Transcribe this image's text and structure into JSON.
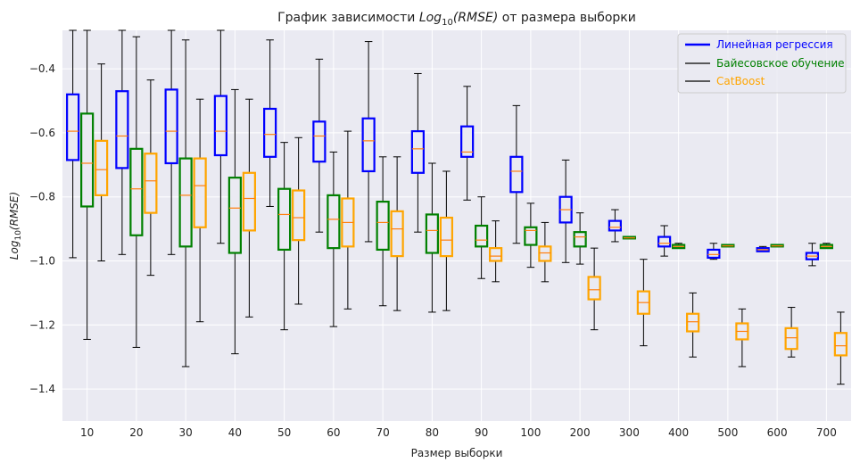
{
  "chart_data": {
    "type": "box",
    "title_prefix": "График зависимости ",
    "title_math_base": "Log",
    "title_math_sub": "10",
    "title_math_arg": "(RMSE)",
    "title_suffix": " от размера выборки",
    "xlabel": "Размер выборки",
    "ylabel_base": "Log",
    "ylabel_sub": "10",
    "ylabel_arg": "(RMSE)",
    "ylim": [
      -1.5,
      -0.28
    ],
    "yticks": [
      -0.4,
      -0.6,
      -0.8,
      -1.0,
      -1.2,
      -1.4
    ],
    "ytick_labels": [
      "−0.4",
      "−0.6",
      "−0.8",
      "−1.0",
      "−1.2",
      "−1.4"
    ],
    "categories": [
      "10",
      "20",
      "30",
      "40",
      "50",
      "60",
      "70",
      "80",
      "90",
      "100",
      "200",
      "300",
      "400",
      "500",
      "600",
      "700"
    ],
    "grid": true,
    "background": "#eaeaf2",
    "median_color": "#ff7f0e",
    "legend_position": "top-right",
    "series": [
      {
        "name": "Линейная регрессия",
        "color": "#0000ff",
        "legend_text_color": "#0000ff",
        "legend_line_color": "#0000ff",
        "boxes": [
          {
            "whislo": -0.99,
            "q1": -0.685,
            "med": -0.595,
            "q3": -0.48,
            "whishi": -0.28
          },
          {
            "whislo": -0.98,
            "q1": -0.71,
            "med": -0.61,
            "q3": -0.47,
            "whishi": -0.28
          },
          {
            "whislo": -0.98,
            "q1": -0.695,
            "med": -0.595,
            "q3": -0.465,
            "whishi": -0.28
          },
          {
            "whislo": -0.945,
            "q1": -0.67,
            "med": -0.595,
            "q3": -0.485,
            "whishi": -0.28
          },
          {
            "whislo": -0.83,
            "q1": -0.675,
            "med": -0.605,
            "q3": -0.525,
            "whishi": -0.31
          },
          {
            "whislo": -0.91,
            "q1": -0.69,
            "med": -0.61,
            "q3": -0.565,
            "whishi": -0.37
          },
          {
            "whislo": -0.94,
            "q1": -0.72,
            "med": -0.625,
            "q3": -0.555,
            "whishi": -0.315
          },
          {
            "whislo": -0.91,
            "q1": -0.725,
            "med": -0.65,
            "q3": -0.595,
            "whishi": -0.415
          },
          {
            "whislo": -0.81,
            "q1": -0.675,
            "med": -0.66,
            "q3": -0.58,
            "whishi": -0.455
          },
          {
            "whislo": -0.945,
            "q1": -0.785,
            "med": -0.72,
            "q3": -0.675,
            "whishi": -0.515
          },
          {
            "whislo": -1.005,
            "q1": -0.88,
            "med": -0.84,
            "q3": -0.8,
            "whishi": -0.685
          },
          {
            "whislo": -0.94,
            "q1": -0.905,
            "med": -0.895,
            "q3": -0.875,
            "whishi": -0.84
          },
          {
            "whislo": -0.985,
            "q1": -0.955,
            "med": -0.945,
            "q3": -0.925,
            "whishi": -0.89
          },
          {
            "whislo": -0.995,
            "q1": -0.99,
            "med": -0.98,
            "q3": -0.965,
            "whishi": -0.945
          },
          {
            "whislo": -0.97,
            "q1": -0.97,
            "med": -0.965,
            "q3": -0.96,
            "whishi": -0.955
          },
          {
            "whislo": -1.015,
            "q1": -0.995,
            "med": -0.985,
            "q3": -0.975,
            "whishi": -0.945
          }
        ]
      },
      {
        "name": "Байесовское обучение",
        "color": "#008000",
        "legend_text_color": "#008000",
        "legend_line_color": "#000000",
        "boxes": [
          {
            "whislo": -1.245,
            "q1": -0.83,
            "med": -0.695,
            "q3": -0.54,
            "whishi": -0.28
          },
          {
            "whislo": -1.27,
            "q1": -0.92,
            "med": -0.775,
            "q3": -0.65,
            "whishi": -0.3
          },
          {
            "whislo": -1.33,
            "q1": -0.955,
            "med": -0.795,
            "q3": -0.68,
            "whishi": -0.31
          },
          {
            "whislo": -1.29,
            "q1": -0.975,
            "med": -0.835,
            "q3": -0.74,
            "whishi": -0.465
          },
          {
            "whislo": -1.215,
            "q1": -0.965,
            "med": -0.855,
            "q3": -0.775,
            "whishi": -0.63
          },
          {
            "whislo": -1.205,
            "q1": -0.96,
            "med": -0.87,
            "q3": -0.795,
            "whishi": -0.66
          },
          {
            "whislo": -1.14,
            "q1": -0.965,
            "med": -0.88,
            "q3": -0.815,
            "whishi": -0.675
          },
          {
            "whislo": -1.16,
            "q1": -0.975,
            "med": -0.905,
            "q3": -0.855,
            "whishi": -0.695
          },
          {
            "whislo": -1.055,
            "q1": -0.955,
            "med": -0.935,
            "q3": -0.89,
            "whishi": -0.8
          },
          {
            "whislo": -1.02,
            "q1": -0.95,
            "med": -0.905,
            "q3": -0.895,
            "whishi": -0.82
          },
          {
            "whislo": -1.01,
            "q1": -0.955,
            "med": -0.925,
            "q3": -0.91,
            "whishi": -0.85
          },
          {
            "whislo": -0.93,
            "q1": -0.93,
            "med": -0.928,
            "q3": -0.925,
            "whishi": -0.925
          },
          {
            "whislo": -0.96,
            "q1": -0.96,
            "med": -0.955,
            "q3": -0.95,
            "whishi": -0.945
          },
          {
            "whislo": -0.955,
            "q1": -0.955,
            "med": -0.953,
            "q3": -0.95,
            "whishi": -0.95
          },
          {
            "whislo": -0.955,
            "q1": -0.955,
            "med": -0.953,
            "q3": -0.95,
            "whishi": -0.95
          },
          {
            "whislo": -0.96,
            "q1": -0.96,
            "med": -0.955,
            "q3": -0.95,
            "whishi": -0.945
          }
        ]
      },
      {
        "name": "CatBoost",
        "color": "#ffa500",
        "legend_text_color": "#ffa500",
        "legend_line_color": "#000000",
        "boxes": [
          {
            "whislo": -1.0,
            "q1": -0.795,
            "med": -0.715,
            "q3": -0.625,
            "whishi": -0.385
          },
          {
            "whislo": -1.045,
            "q1": -0.85,
            "med": -0.75,
            "q3": -0.665,
            "whishi": -0.435
          },
          {
            "whislo": -1.19,
            "q1": -0.895,
            "med": -0.765,
            "q3": -0.68,
            "whishi": -0.495
          },
          {
            "whislo": -1.175,
            "q1": -0.905,
            "med": -0.805,
            "q3": -0.725,
            "whishi": -0.495
          },
          {
            "whislo": -1.135,
            "q1": -0.935,
            "med": -0.865,
            "q3": -0.78,
            "whishi": -0.615
          },
          {
            "whislo": -1.15,
            "q1": -0.955,
            "med": -0.88,
            "q3": -0.805,
            "whishi": -0.595
          },
          {
            "whislo": -1.155,
            "q1": -0.985,
            "med": -0.9,
            "q3": -0.845,
            "whishi": -0.675
          },
          {
            "whislo": -1.155,
            "q1": -0.985,
            "med": -0.935,
            "q3": -0.865,
            "whishi": -0.72
          },
          {
            "whislo": -1.065,
            "q1": -1.0,
            "med": -0.985,
            "q3": -0.96,
            "whishi": -0.875
          },
          {
            "whislo": -1.065,
            "q1": -1.0,
            "med": -0.975,
            "q3": -0.955,
            "whishi": -0.88
          },
          {
            "whislo": -1.215,
            "q1": -1.12,
            "med": -1.09,
            "q3": -1.05,
            "whishi": -0.96
          },
          {
            "whislo": -1.265,
            "q1": -1.165,
            "med": -1.13,
            "q3": -1.095,
            "whishi": -0.995
          },
          {
            "whislo": -1.3,
            "q1": -1.22,
            "med": -1.19,
            "q3": -1.165,
            "whishi": -1.1
          },
          {
            "whislo": -1.33,
            "q1": -1.245,
            "med": -1.22,
            "q3": -1.195,
            "whishi": -1.15
          },
          {
            "whislo": -1.3,
            "q1": -1.275,
            "med": -1.24,
            "q3": -1.21,
            "whishi": -1.145
          },
          {
            "whislo": -1.385,
            "q1": -1.295,
            "med": -1.265,
            "q3": -1.225,
            "whishi": -1.16
          }
        ]
      }
    ]
  }
}
